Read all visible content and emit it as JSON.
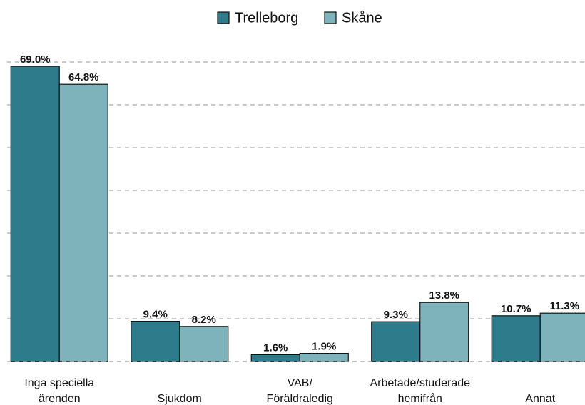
{
  "chart_data": {
    "type": "bar",
    "categories": [
      [
        "Inga speciella",
        "ärenden"
      ],
      [
        "Sjukdom"
      ],
      [
        "VAB/",
        "Föräldraledig"
      ],
      [
        "Arbetade/studerade",
        "hemifrån"
      ],
      [
        "Annat"
      ]
    ],
    "series": [
      {
        "name": "Trelleborg",
        "color": "#2e7b8c",
        "values": [
          69.0,
          9.4,
          1.6,
          9.3,
          10.7
        ],
        "value_labels": [
          "69.0%",
          "9.4%",
          "1.6%",
          "9.3%",
          "10.7%"
        ]
      },
      {
        "name": "Skåne",
        "color": "#7fb3bc",
        "values": [
          64.8,
          8.2,
          1.9,
          13.8,
          11.3
        ],
        "value_labels": [
          "64.8%",
          "8.2%",
          "1.9%",
          "13.8%",
          "11.3%"
        ]
      }
    ],
    "ylim": [
      0,
      70
    ],
    "yticks": [
      0,
      10,
      20,
      30,
      40,
      50,
      60,
      70
    ],
    "grid": true,
    "legend": "top"
  }
}
